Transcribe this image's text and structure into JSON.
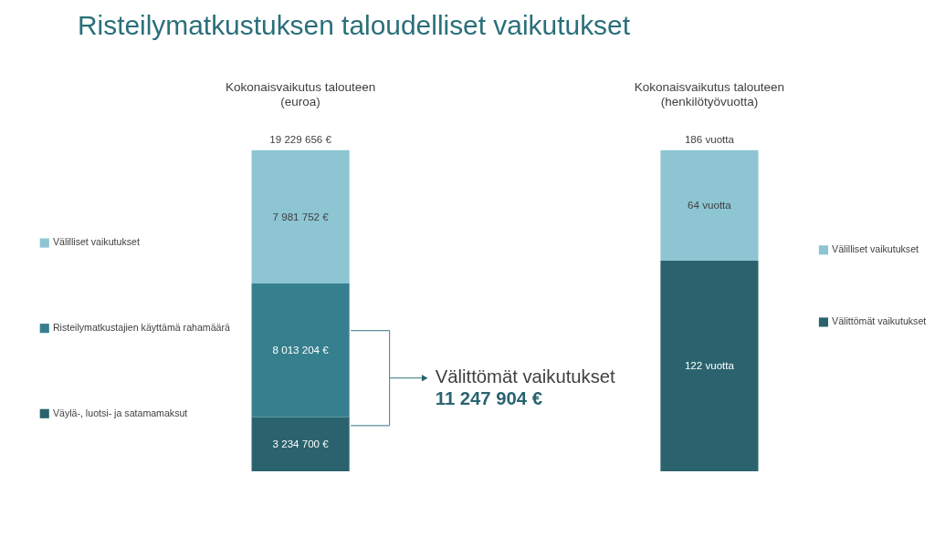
{
  "chart_data": [
    {
      "type": "bar",
      "title": "Risteilymatkustuksen taloudelliset vaikutukset",
      "subtitle": "Kokonaisvaikutus talouteen\n(euroa)",
      "categories": [
        null
      ],
      "stacked": true,
      "legend": "left",
      "tick_labels": false,
      "series": [
        {
          "name": "Väylä-, luotsi- ja satamamaksut",
          "color": "#2a636e",
          "values": [
            3234700
          ],
          "value_labels": [
            "3 234 700 €"
          ]
        },
        {
          "name": "Risteilymatkustajien käyttämä rahamäärä",
          "color": "#367f8e",
          "values": [
            8013204
          ],
          "value_labels": [
            "8 013 204 €"
          ]
        },
        {
          "name": "Välilliset vaikutukset",
          "color": "#8dc5d3",
          "values": [
            7981752
          ],
          "value_labels": [
            "7 981 752 €"
          ]
        }
      ],
      "totals": [
        "19 229 656 €"
      ],
      "annotations": [
        "Välittömät vaikutukset",
        "11 247 904 €"
      ]
    },
    {
      "type": "bar",
      "subtitle": "Kokonaisvaikutus talouteen\n(henkilötyövuotta)",
      "categories": [
        null
      ],
      "stacked": true,
      "legend": "right",
      "tick_labels": false,
      "series": [
        {
          "name": "Välittömät vaikutukset",
          "color": "#2a636e",
          "values": [
            122
          ],
          "value_labels": [
            "122 vuotta"
          ]
        },
        {
          "name": "Välilliset vaikutukset",
          "color": "#8dc5d3",
          "values": [
            64
          ],
          "value_labels": [
            "64 vuotta"
          ]
        }
      ],
      "totals": [
        "186 vuotta"
      ]
    }
  ]
}
